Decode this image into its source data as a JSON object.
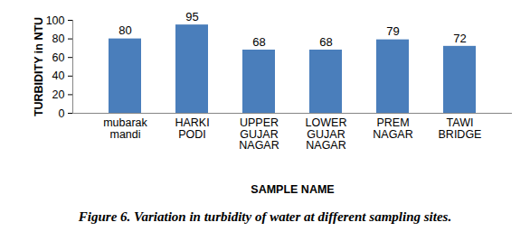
{
  "chart_data": {
    "type": "bar",
    "title": "Figure 6. Variation in turbidity of water at different sampling sites.",
    "x_label": "SAMPLE NAME",
    "y_label": "TURBIDITY in NTU",
    "categories": [
      "mubarak mandi",
      "HARKI PODI",
      "UPPER GUJAR NAGAR",
      "LOWER GUJAR NAGAR",
      "PREM NAGAR",
      "TAWI BRIDGE"
    ],
    "values": [
      80,
      95,
      68,
      68,
      79,
      72
    ],
    "color": "#4a7ebb",
    "ylim": [
      0,
      100
    ],
    "yticks": [
      0,
      20,
      40,
      60,
      80,
      100
    ],
    "grid": false,
    "data_labels": true
  }
}
